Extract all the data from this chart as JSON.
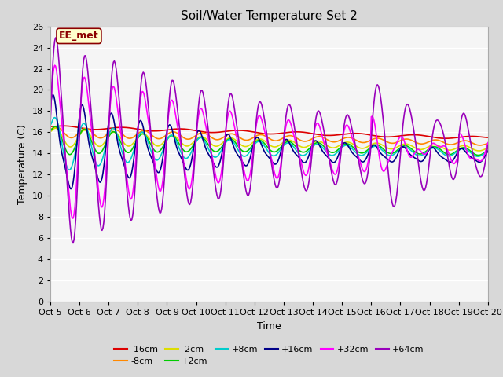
{
  "title": "Soil/Water Temperature Set 2",
  "xlabel": "Time",
  "ylabel": "Temperature (C)",
  "ylim": [
    0,
    26
  ],
  "yticks": [
    0,
    2,
    4,
    6,
    8,
    10,
    12,
    14,
    16,
    18,
    20,
    22,
    24,
    26
  ],
  "xlim": [
    0,
    15
  ],
  "xtick_labels": [
    "Oct 5",
    "Oct 6",
    "Oct 7",
    "Oct 8",
    "Oct 9",
    "Oct 10",
    "Oct 11",
    "Oct 12",
    "Oct 13",
    "Oct 14",
    "Oct 15",
    "Oct 16",
    "Oct 17",
    "Oct 18",
    "Oct 19",
    "Oct 20"
  ],
  "plot_bg_color": "#f5f5f5",
  "fig_bg_color": "#d8d8d8",
  "watermark": "EE_met",
  "watermark_bg": "#ffffcc",
  "watermark_border": "#8b0000",
  "colors": {
    "-16cm": "#dd0000",
    "-8cm": "#ff8800",
    "-2cm": "#dddd00",
    "+2cm": "#00cc00",
    "+8cm": "#00cccc",
    "+16cm": "#000088",
    "+32cm": "#ff00ff",
    "+64cm": "#9900bb"
  }
}
